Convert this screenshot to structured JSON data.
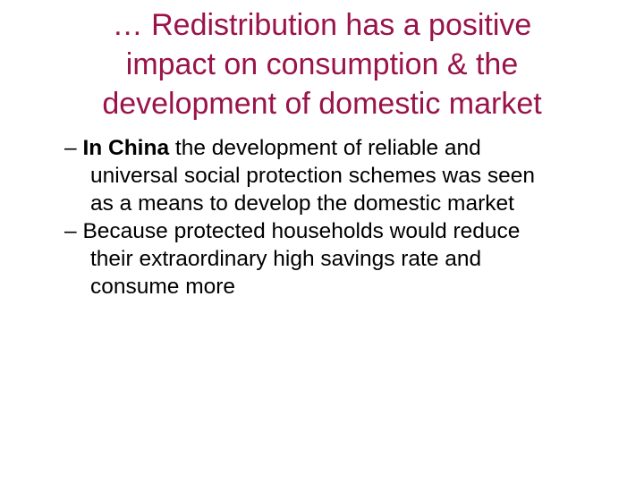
{
  "slide": {
    "title_lines": [
      "… Redistribution has a positive",
      "impact on consumption & the",
      "development of domestic market"
    ],
    "bullets": [
      {
        "lines": [
          {
            "dash": "– ",
            "bold": "In China",
            "rest": " the development of reliable and"
          },
          {
            "text": "universal social protection schemes was seen"
          },
          {
            "text": "as a means to develop the domestic market"
          }
        ]
      },
      {
        "lines": [
          {
            "dash": "– ",
            "rest": "Because protected households would reduce"
          },
          {
            "text": "their extraordinary high savings rate and"
          },
          {
            "text": "consume more"
          }
        ]
      }
    ]
  }
}
